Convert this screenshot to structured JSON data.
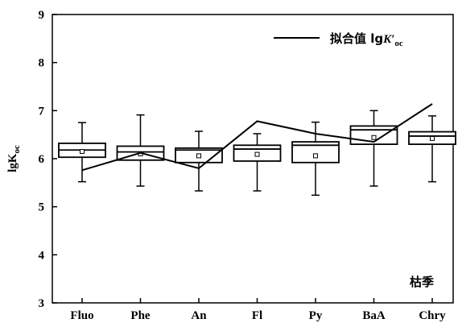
{
  "chart_data": {
    "type": "box",
    "ylabel": {
      "base": "lgK",
      "sub": "oc"
    },
    "ylim": [
      3,
      9
    ],
    "yticks": [
      3,
      4,
      5,
      6,
      7,
      8,
      9
    ],
    "categories": [
      "Fluo",
      "Phe",
      "An",
      "Fl",
      "Py",
      "BaA",
      "Chry"
    ],
    "boxes": [
      {
        "min": 5.52,
        "q1": 6.03,
        "median": 6.18,
        "q3": 6.32,
        "max": 6.75,
        "mean": 6.15
      },
      {
        "min": 5.43,
        "q1": 5.97,
        "median": 6.14,
        "q3": 6.26,
        "max": 6.91,
        "mean": 6.1
      },
      {
        "min": 5.33,
        "q1": 5.92,
        "median": 6.18,
        "q3": 6.22,
        "max": 6.57,
        "mean": 6.06
      },
      {
        "min": 5.33,
        "q1": 5.95,
        "median": 6.2,
        "q3": 6.28,
        "max": 6.52,
        "mean": 6.09
      },
      {
        "min": 5.24,
        "q1": 5.92,
        "median": 6.28,
        "q3": 6.35,
        "max": 6.76,
        "mean": 6.06
      },
      {
        "min": 5.43,
        "q1": 6.3,
        "median": 6.6,
        "q3": 6.68,
        "max": 7.0,
        "mean": 6.44
      },
      {
        "min": 5.52,
        "q1": 6.3,
        "median": 6.47,
        "q3": 6.56,
        "max": 6.89,
        "mean": 6.42
      }
    ],
    "fitted_line": {
      "name": {
        "prefix": "拟合值 lg",
        "italic": "K′",
        "sub": "oc"
      },
      "values": [
        5.76,
        6.12,
        5.8,
        6.78,
        6.52,
        6.35,
        7.14
      ]
    },
    "annotation": "枯季",
    "legend_position": "top-right",
    "grid": false
  }
}
